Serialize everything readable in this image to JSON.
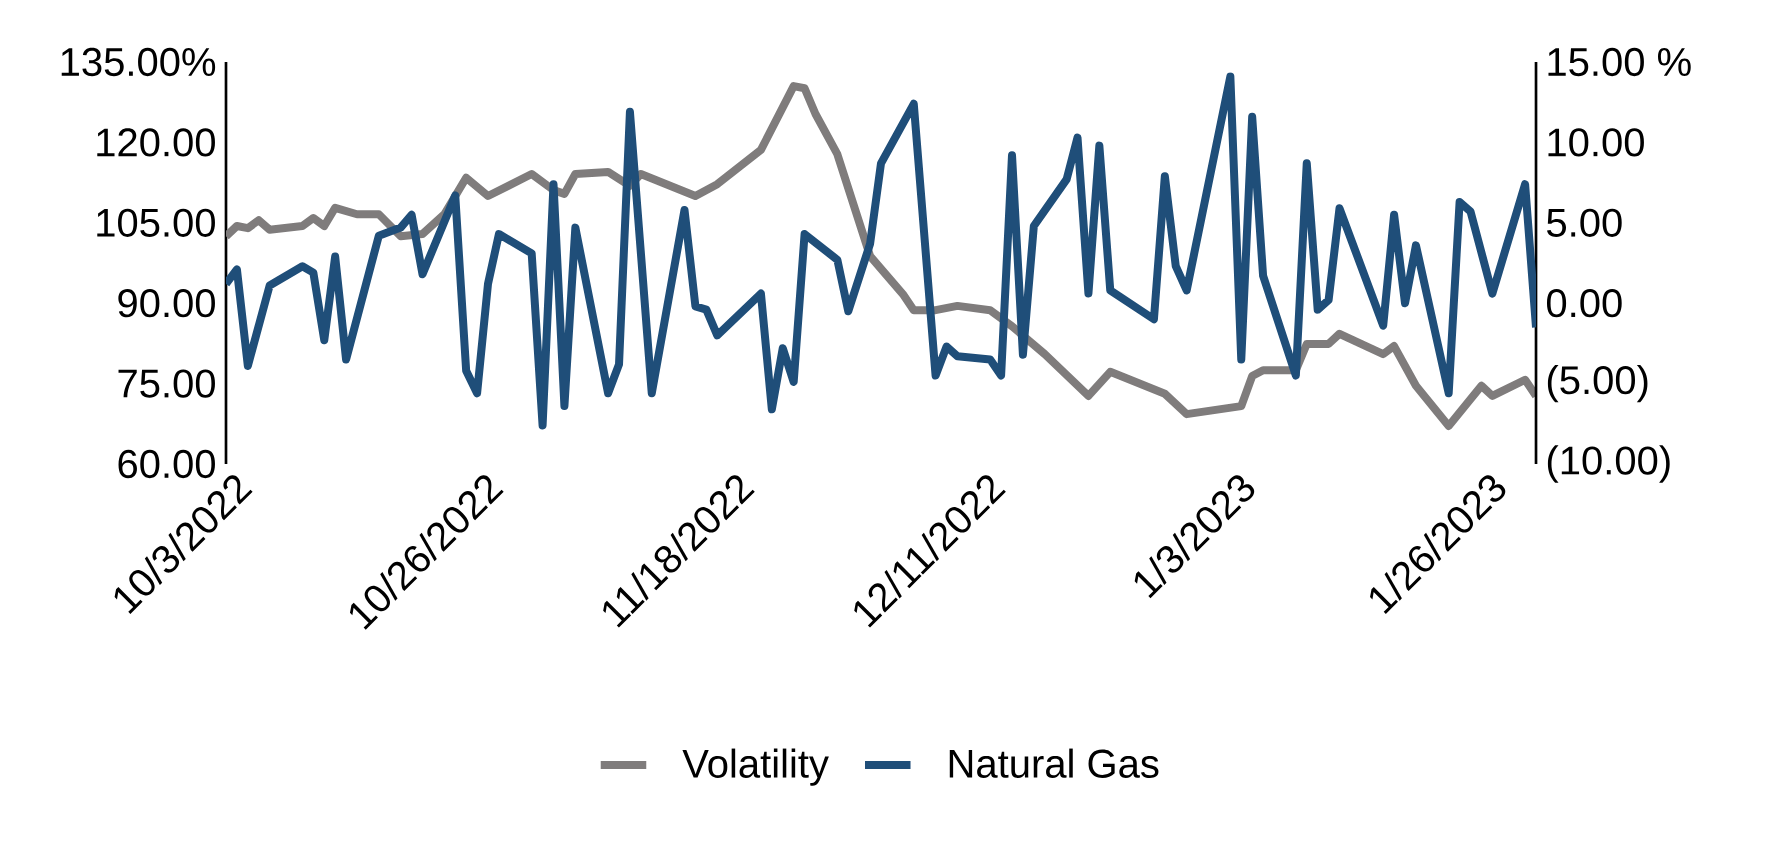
{
  "chart_data": {
    "type": "line",
    "xlim": [
      "2022-10-03",
      "2023-01-31"
    ],
    "xticks": [
      {
        "value": "2022-10-03",
        "label": "10/3/2022"
      },
      {
        "value": "2022-10-26",
        "label": "10/26/2022"
      },
      {
        "value": "2022-11-18",
        "label": "11/18/2022"
      },
      {
        "value": "2022-12-11",
        "label": "12/11/2022"
      },
      {
        "value": "2023-01-03",
        "label": "1/3/2023"
      },
      {
        "value": "2023-01-26",
        "label": "1/26/2023"
      }
    ],
    "ylim": [
      60,
      135
    ],
    "yticks": [
      {
        "value": 60,
        "label": "60.00"
      },
      {
        "value": 75,
        "label": "75.00"
      },
      {
        "value": 90,
        "label": "90.00"
      },
      {
        "value": 105,
        "label": "105.00"
      },
      {
        "value": 120,
        "label": "120.00"
      },
      {
        "value": 135,
        "label": "135.00%"
      }
    ],
    "y2lim": [
      -10,
      15
    ],
    "y2ticks": [
      {
        "value": -10,
        "label": "(10.00)"
      },
      {
        "value": -5,
        "label": "(5.00)"
      },
      {
        "value": 0,
        "label": "0.00"
      },
      {
        "value": 5,
        "label": "5.00"
      },
      {
        "value": 10,
        "label": "10.00"
      },
      {
        "value": 15,
        "label": "15.00 %"
      }
    ],
    "grid": false,
    "legend": "bottom",
    "marker": "none",
    "line_style": "solid",
    "series": [
      {
        "name": "Volatility",
        "color": "#7f7c7c",
        "x": [
          "2022-10-03",
          "2022-10-04",
          "2022-10-05",
          "2022-10-06",
          "2022-10-07",
          "2022-10-10",
          "2022-10-11",
          "2022-10-12",
          "2022-10-13",
          "2022-10-15",
          "2022-10-17",
          "2022-10-19",
          "2022-10-21",
          "2022-10-23",
          "2022-10-25",
          "2022-10-27",
          "2022-10-31",
          "2022-11-02",
          "2022-11-03",
          "2022-11-04",
          "2022-11-07",
          "2022-11-09",
          "2022-11-10",
          "2022-11-15",
          "2022-11-17",
          "2022-11-21",
          "2022-11-24",
          "2022-11-25",
          "2022-11-26",
          "2022-11-28",
          "2022-12-01",
          "2022-12-04",
          "2022-12-05",
          "2022-12-07",
          "2022-12-09",
          "2022-12-12",
          "2022-12-14",
          "2022-12-17",
          "2022-12-21",
          "2022-12-23",
          "2022-12-28",
          "2022-12-30",
          "2023-01-04",
          "2023-01-05",
          "2023-01-06",
          "2023-01-09",
          "2023-01-10",
          "2023-01-12",
          "2023-01-13",
          "2023-01-17",
          "2023-01-18",
          "2023-01-20",
          "2023-01-23",
          "2023-01-26",
          "2023-01-27",
          "2023-01-30",
          "2023-01-31"
        ],
        "values": [
          102.5,
          104.4,
          104,
          105.5,
          103.7,
          104.4,
          105.9,
          104.4,
          107.8,
          106.6,
          106.6,
          102.5,
          102.9,
          106.6,
          113.4,
          110,
          114.1,
          111.1,
          110.4,
          114.1,
          114.5,
          111.9,
          114.1,
          110,
          112.2,
          118.6,
          130.5,
          130.1,
          125.3,
          117.8,
          98.8,
          91.7,
          88.7,
          88.7,
          89.5,
          88.7,
          85.7,
          80.5,
          72.7,
          77.2,
          73.1,
          69.3,
          70.8,
          76.4,
          77.5,
          77.5,
          82.4,
          82.4,
          84.3,
          80.5,
          82,
          74.6,
          67.1,
          74.6,
          72.7,
          75.7,
          72.7
        ]
      },
      {
        "name": "Natural Gas",
        "color": "#1f4e79",
        "axis": "y2",
        "x": [
          "2022-10-03",
          "2022-10-04",
          "2022-10-05",
          "2022-10-07",
          "2022-10-10",
          "2022-10-11",
          "2022-10-12",
          "2022-10-13",
          "2022-10-14",
          "2022-10-17",
          "2022-10-19",
          "2022-10-20",
          "2022-10-21",
          "2022-10-24",
          "2022-10-25",
          "2022-10-26",
          "2022-10-27",
          "2022-10-28",
          "2022-10-31",
          "2022-11-01",
          "2022-11-02",
          "2022-11-03",
          "2022-11-04",
          "2022-11-07",
          "2022-11-08",
          "2022-11-09",
          "2022-11-11",
          "2022-11-14",
          "2022-11-15",
          "2022-11-16",
          "2022-11-17",
          "2022-11-21",
          "2022-11-22",
          "2022-11-23",
          "2022-11-24",
          "2022-11-25",
          "2022-11-28",
          "2022-11-29",
          "2022-12-01",
          "2022-12-02",
          "2022-12-05",
          "2022-12-07",
          "2022-12-08",
          "2022-12-09",
          "2022-12-12",
          "2022-12-13",
          "2022-12-14",
          "2022-12-15",
          "2022-12-16",
          "2022-12-19",
          "2022-12-20",
          "2022-12-21",
          "2022-12-22",
          "2022-12-23",
          "2022-12-27",
          "2022-12-28",
          "2022-12-29",
          "2022-12-30",
          "2023-01-03",
          "2023-01-04",
          "2023-01-05",
          "2023-01-06",
          "2023-01-09",
          "2023-01-10",
          "2023-01-11",
          "2023-01-12",
          "2023-01-13",
          "2023-01-17",
          "2023-01-18",
          "2023-01-19",
          "2023-01-20",
          "2023-01-23",
          "2023-01-24",
          "2023-01-25",
          "2023-01-27",
          "2023-01-30",
          "2023-01-31"
        ],
        "values": [
          1.2,
          2.1,
          -3.9,
          1.1,
          2.3,
          1.9,
          -2.3,
          2.9,
          -3.5,
          4.2,
          4.7,
          5.5,
          1.8,
          6.7,
          -4.2,
          -5.6,
          1.2,
          4.3,
          3.1,
          -7.6,
          7.4,
          -6.4,
          4.7,
          -5.6,
          -3.8,
          11.9,
          -5.6,
          5.8,
          -0.2,
          -0.4,
          -2.0,
          0.6,
          -6.6,
          -2.8,
          -4.9,
          4.3,
          2.7,
          -0.5,
          3.7,
          8.7,
          12.4,
          -4.5,
          -2.7,
          -3.3,
          -3.5,
          -4.5,
          9.2,
          -3.2,
          4.8,
          7.7,
          10.3,
          0.6,
          9.8,
          0.8,
          -1.0,
          7.9,
          2.3,
          0.8,
          14.1,
          -3.5,
          11.6,
          1.7,
          -4.5,
          8.7,
          -0.4,
          0.2,
          5.9,
          -1.4,
          5.5,
          0.0,
          3.6,
          -5.6,
          6.3,
          5.7,
          0.6,
          7.4,
          -1.5
        ]
      }
    ]
  }
}
